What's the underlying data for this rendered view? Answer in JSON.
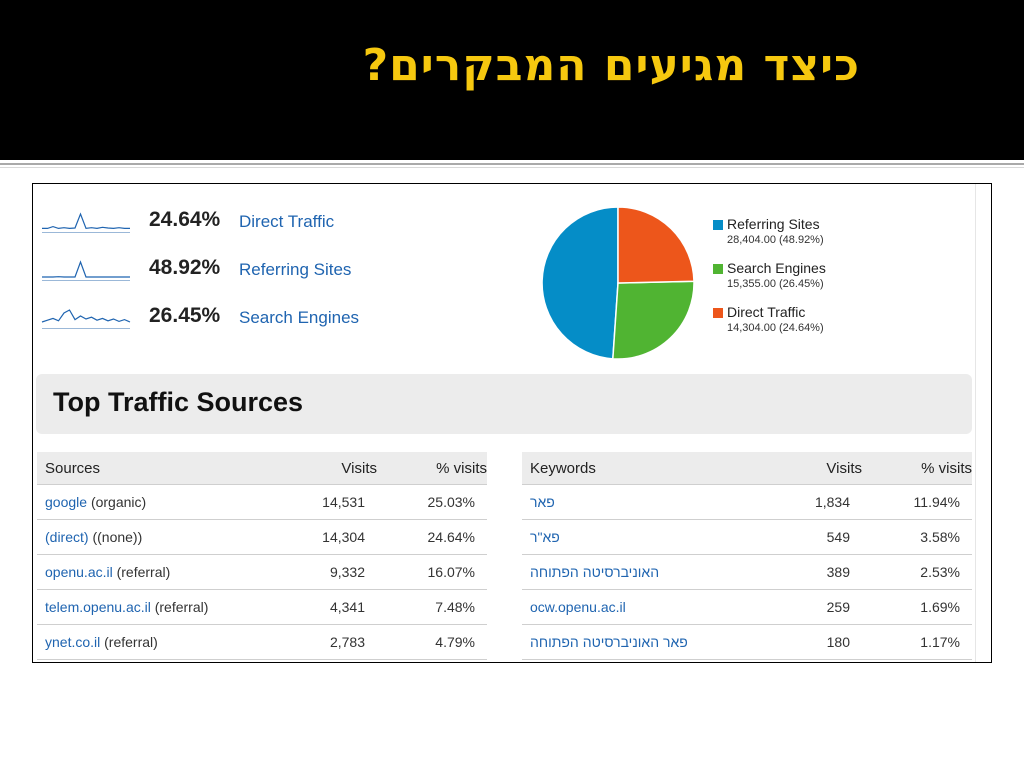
{
  "slide": {
    "title": "כיצד מגיעים המבקרים?"
  },
  "summary": [
    {
      "pct": "24.64%",
      "label": "Direct Traffic",
      "spark": [
        1,
        1,
        1.5,
        1,
        1.2,
        1,
        1.1,
        5,
        1,
        1.2,
        1,
        1.3,
        1.1,
        1,
        1.2,
        1,
        1
      ]
    },
    {
      "pct": "48.92%",
      "label": "Referring Sites",
      "spark": [
        1,
        1,
        1,
        1.1,
        1,
        1,
        1,
        6,
        1,
        1,
        1,
        1,
        1,
        1,
        1,
        1,
        1
      ]
    },
    {
      "pct": "26.45%",
      "label": "Search Engines",
      "spark": [
        1,
        1.3,
        1.6,
        1.2,
        2.5,
        3,
        1.4,
        2,
        1.5,
        1.8,
        1.3,
        1.6,
        1.2,
        1.5,
        1.1,
        1.4,
        1
      ]
    }
  ],
  "chart_data": {
    "type": "pie",
    "slices": [
      {
        "name": "Referring Sites",
        "value": 28404,
        "label": "28,404.00 (48.92%)",
        "color": "#058dc7"
      },
      {
        "name": "Search Engines",
        "value": 15355,
        "label": "15,355.00 (26.45%)",
        "color": "#50b432"
      },
      {
        "name": "Direct Traffic",
        "value": 14304,
        "label": "14,304.00 (24.64%)",
        "color": "#ed561b"
      }
    ]
  },
  "top_traffic": {
    "title": "Top Traffic Sources"
  },
  "sources": {
    "headers": [
      "Sources",
      "Visits",
      "% visits"
    ],
    "rows": [
      {
        "name": "google",
        "type": "(organic)",
        "visits": "14,531",
        "pct": "25.03%"
      },
      {
        "name": "(direct)",
        "type": "((none))",
        "visits": "14,304",
        "pct": "24.64%"
      },
      {
        "name": "openu.ac.il",
        "type": "(referral)",
        "visits": "9,332",
        "pct": "16.07%"
      },
      {
        "name": "telem.openu.ac.il",
        "type": "(referral)",
        "visits": "4,341",
        "pct": "7.48%"
      },
      {
        "name": "ynet.co.il",
        "type": "(referral)",
        "visits": "2,783",
        "pct": "4.79%"
      }
    ]
  },
  "keywords": {
    "headers": [
      "Keywords",
      "Visits",
      "% visits"
    ],
    "rows": [
      {
        "keyword": "פאר",
        "visits": "1,834",
        "pct": "11.94%"
      },
      {
        "keyword": "פא\"ר",
        "visits": "549",
        "pct": "3.58%"
      },
      {
        "keyword": "האוניברסיטה הפתוחה",
        "visits": "389",
        "pct": "2.53%"
      },
      {
        "keyword": "ocw.openu.ac.il",
        "visits": "259",
        "pct": "1.69%"
      },
      {
        "keyword": "פאר האוניברסיטה הפתוחה",
        "visits": "180",
        "pct": "1.17%"
      }
    ]
  }
}
